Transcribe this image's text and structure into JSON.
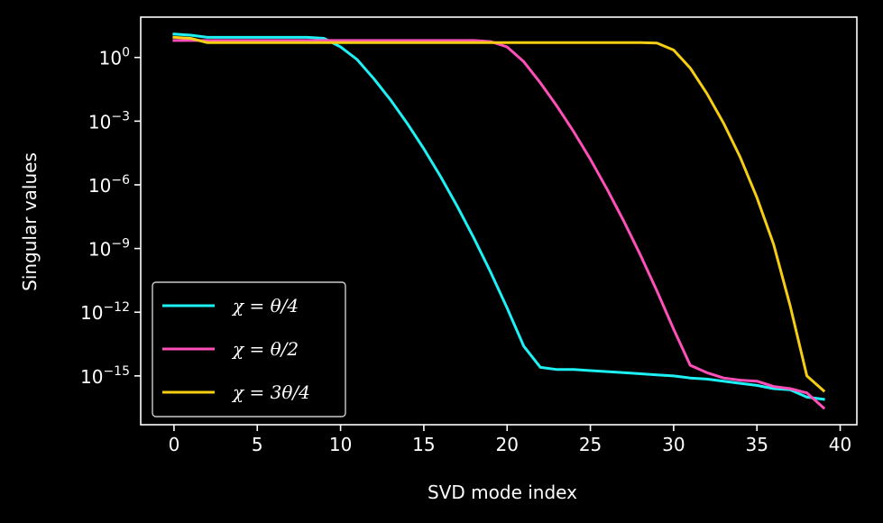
{
  "chart_data": {
    "type": "line",
    "xlabel": "SVD mode index",
    "ylabel": "Singular values",
    "x_scale": "linear",
    "y_scale": "log",
    "xlim": [
      -2,
      41
    ],
    "ylim_exponent": [
      -17.3,
      1.9
    ],
    "xticks": [
      {
        "value": 0,
        "label": "0"
      },
      {
        "value": 5,
        "label": "5"
      },
      {
        "value": 10,
        "label": "10"
      },
      {
        "value": 15,
        "label": "15"
      },
      {
        "value": 20,
        "label": "20"
      },
      {
        "value": 25,
        "label": "25"
      },
      {
        "value": 30,
        "label": "30"
      },
      {
        "value": 35,
        "label": "35"
      },
      {
        "value": 40,
        "label": "40"
      }
    ],
    "yticks": [
      {
        "exp": 0,
        "base": "10",
        "sup": "0"
      },
      {
        "exp": -3,
        "base": "10",
        "sup": "−3"
      },
      {
        "exp": -6,
        "base": "10",
        "sup": "−6"
      },
      {
        "exp": -9,
        "base": "10",
        "sup": "−9"
      },
      {
        "exp": -12,
        "base": "10",
        "sup": "−12"
      },
      {
        "exp": -15,
        "base": "10",
        "sup": "−15"
      }
    ],
    "grid": false,
    "legend_position": "lower-left",
    "x": [
      0,
      1,
      2,
      3,
      4,
      5,
      6,
      7,
      8,
      9,
      10,
      11,
      12,
      13,
      14,
      15,
      16,
      17,
      18,
      19,
      20,
      21,
      22,
      23,
      24,
      25,
      26,
      27,
      28,
      29,
      30,
      31,
      32,
      33,
      34,
      35,
      36,
      37,
      38,
      39
    ],
    "series": [
      {
        "name": "χ = θ/4",
        "color": "#1ef1f5",
        "log10_values": [
          1.1,
          1.05,
          0.95,
          0.95,
          0.95,
          0.95,
          0.95,
          0.95,
          0.95,
          0.9,
          0.5,
          -0.1,
          -1.0,
          -2.0,
          -3.1,
          -4.3,
          -5.6,
          -7.0,
          -8.5,
          -10.1,
          -11.8,
          -13.6,
          -14.6,
          -14.7,
          -14.7,
          -14.75,
          -14.8,
          -14.85,
          -14.9,
          -14.95,
          -15.0,
          -15.1,
          -15.15,
          -15.25,
          -15.35,
          -15.45,
          -15.6,
          -15.65,
          -16.0,
          -16.1
        ]
      },
      {
        "name": "χ = θ/2",
        "color": "#ff4fb8",
        "log10_values": [
          0.8,
          0.8,
          0.8,
          0.8,
          0.8,
          0.8,
          0.8,
          0.8,
          0.8,
          0.8,
          0.8,
          0.8,
          0.8,
          0.8,
          0.8,
          0.8,
          0.8,
          0.8,
          0.8,
          0.75,
          0.5,
          -0.2,
          -1.2,
          -2.3,
          -3.5,
          -4.8,
          -6.2,
          -7.7,
          -9.3,
          -11.0,
          -12.8,
          -14.5,
          -14.85,
          -15.1,
          -15.2,
          -15.25,
          -15.5,
          -15.6,
          -15.8,
          -16.5
        ]
      },
      {
        "name": "χ = 3θ/4",
        "color": "#f5ce14",
        "log10_values": [
          0.95,
          0.9,
          0.7,
          0.7,
          0.7,
          0.7,
          0.7,
          0.7,
          0.7,
          0.7,
          0.7,
          0.7,
          0.7,
          0.7,
          0.7,
          0.7,
          0.7,
          0.7,
          0.7,
          0.7,
          0.7,
          0.7,
          0.7,
          0.7,
          0.7,
          0.7,
          0.7,
          0.7,
          0.7,
          0.68,
          0.35,
          -0.5,
          -1.7,
          -3.1,
          -4.7,
          -6.6,
          -8.8,
          -11.7,
          -15.0,
          -15.7
        ]
      }
    ]
  }
}
